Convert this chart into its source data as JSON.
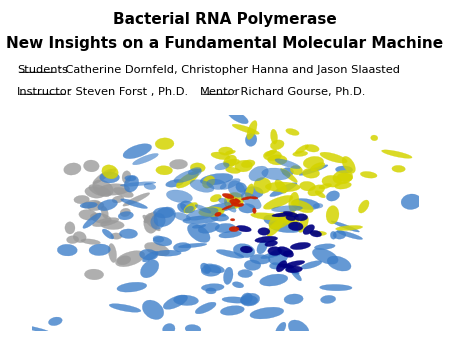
{
  "title_line1": "Bacterial RNA Polymerase",
  "title_line2": "New Insights on a Fundamental Molecular Machine",
  "students_label": "Students",
  "students_text": ": Catherine Dornfeld, Christopher Hanna and Jason Slaasted",
  "instructor_label": "Instructor",
  "instructor_text": ": Steven Forst , Ph.D.",
  "mentor_label": "Mentor",
  "mentor_text": ": Richard Gourse, Ph.D.",
  "background_color": "#ffffff",
  "title_fontsize": 11.0,
  "body_fontsize": 8.2,
  "blue": "#3A7CC8",
  "yellow": "#D4D400",
  "gray": "#999999",
  "dark_blue": "#000080",
  "red": "#CC2200",
  "fig_width": 4.5,
  "fig_height": 3.38,
  "dpi": 100
}
